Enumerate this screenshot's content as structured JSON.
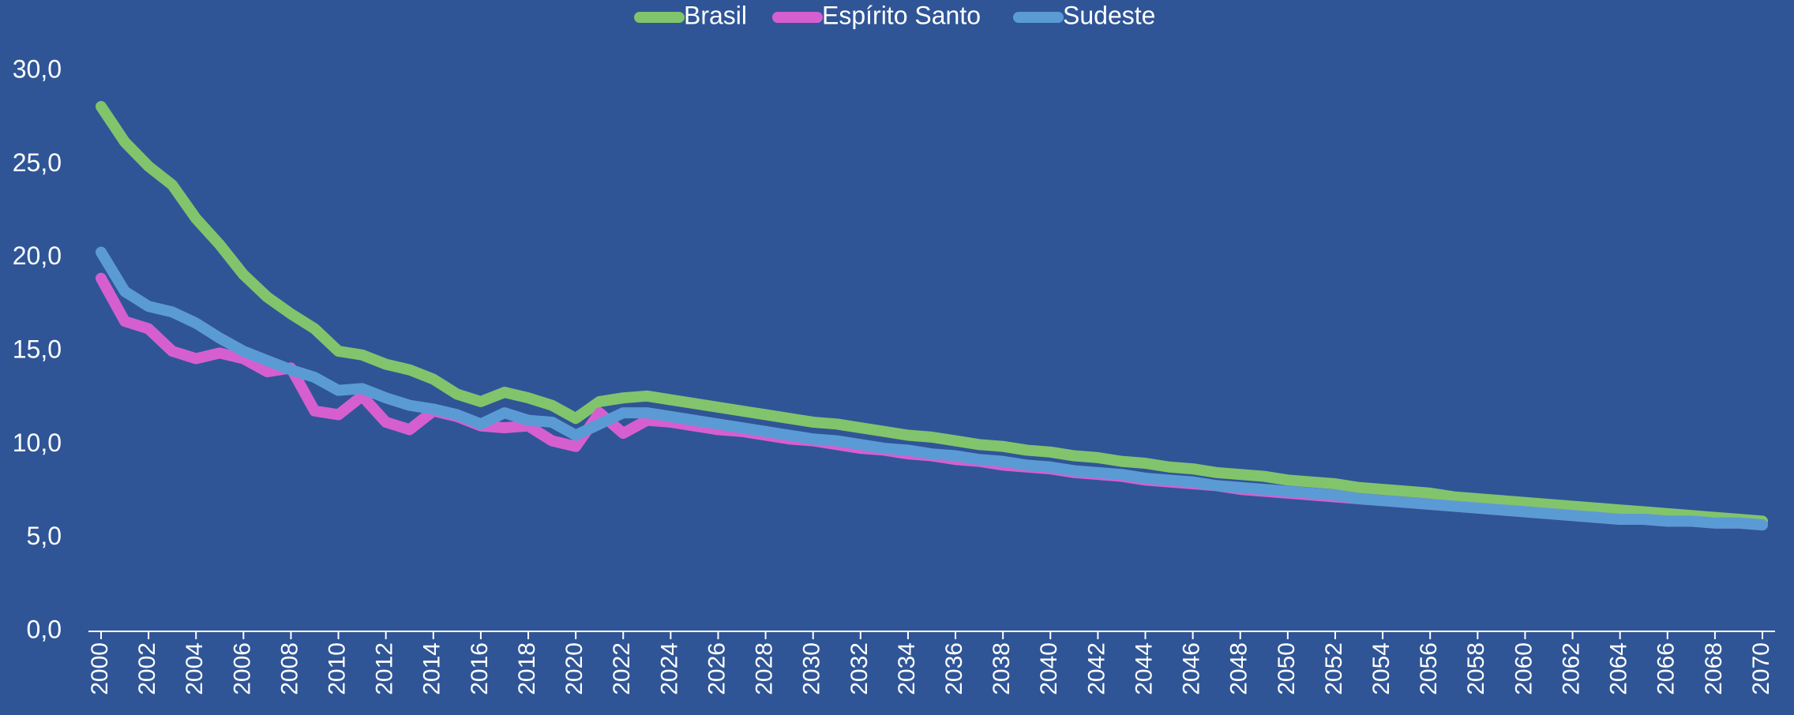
{
  "chart_data": {
    "type": "line",
    "x": [
      2000,
      2001,
      2002,
      2003,
      2004,
      2005,
      2006,
      2007,
      2008,
      2009,
      2010,
      2011,
      2012,
      2013,
      2014,
      2015,
      2016,
      2017,
      2018,
      2019,
      2020,
      2021,
      2022,
      2023,
      2024,
      2025,
      2026,
      2027,
      2028,
      2029,
      2030,
      2031,
      2032,
      2033,
      2034,
      2035,
      2036,
      2037,
      2038,
      2039,
      2040,
      2041,
      2042,
      2043,
      2044,
      2045,
      2046,
      2047,
      2048,
      2049,
      2050,
      2051,
      2052,
      2053,
      2054,
      2055,
      2056,
      2057,
      2058,
      2059,
      2060,
      2061,
      2062,
      2063,
      2064,
      2065,
      2066,
      2067,
      2068,
      2069,
      2070
    ],
    "series": [
      {
        "name": "Brasil",
        "color": "#82c46c",
        "values": [
          28.1,
          26.2,
          24.9,
          23.9,
          22.1,
          20.7,
          19.1,
          17.9,
          17.0,
          16.2,
          15.0,
          14.8,
          14.3,
          14.0,
          13.5,
          12.7,
          12.3,
          12.8,
          12.5,
          12.1,
          11.4,
          12.3,
          12.5,
          12.6,
          12.4,
          12.2,
          12.0,
          11.8,
          11.6,
          11.4,
          11.2,
          11.1,
          10.9,
          10.7,
          10.5,
          10.4,
          10.2,
          10.0,
          9.9,
          9.7,
          9.6,
          9.4,
          9.3,
          9.1,
          9.0,
          8.8,
          8.7,
          8.5,
          8.4,
          8.3,
          8.1,
          8.0,
          7.9,
          7.7,
          7.6,
          7.5,
          7.4,
          7.2,
          7.1,
          7.0,
          6.9,
          6.8,
          6.7,
          6.6,
          6.5,
          6.4,
          6.3,
          6.2,
          6.1,
          6.0,
          5.9
        ]
      },
      {
        "name": "Espírito Santo",
        "color": "#d65fd0",
        "values": [
          18.9,
          16.6,
          16.2,
          15.0,
          14.6,
          14.9,
          14.6,
          13.9,
          14.1,
          11.8,
          11.6,
          12.6,
          11.2,
          10.8,
          11.8,
          11.5,
          11.0,
          10.9,
          11.0,
          10.2,
          9.9,
          11.7,
          10.6,
          11.3,
          11.2,
          11.0,
          10.8,
          10.7,
          10.5,
          10.3,
          10.2,
          10.0,
          9.8,
          9.7,
          9.5,
          9.4,
          9.2,
          9.1,
          8.9,
          8.8,
          8.7,
          8.5,
          8.4,
          8.3,
          8.1,
          8.0,
          7.9,
          7.8,
          7.6,
          7.5,
          7.4,
          7.3,
          7.2,
          7.1,
          7.0,
          6.9,
          6.8,
          6.7,
          6.6,
          6.5,
          6.4,
          6.3,
          6.2,
          6.1,
          6.0,
          6.0,
          5.9,
          5.9,
          5.8,
          5.8,
          5.7
        ]
      },
      {
        "name": "Sudeste",
        "color": "#5b9bd5",
        "values": [
          20.3,
          18.2,
          17.4,
          17.1,
          16.5,
          15.7,
          15.0,
          14.5,
          14.0,
          13.6,
          12.9,
          13.0,
          12.5,
          12.1,
          11.9,
          11.6,
          11.1,
          11.7,
          11.3,
          11.2,
          10.5,
          11.1,
          11.7,
          11.7,
          11.5,
          11.3,
          11.1,
          10.9,
          10.7,
          10.5,
          10.3,
          10.2,
          10.0,
          9.8,
          9.7,
          9.5,
          9.4,
          9.2,
          9.1,
          8.9,
          8.8,
          8.6,
          8.5,
          8.4,
          8.2,
          8.1,
          8.0,
          7.8,
          7.7,
          7.6,
          7.5,
          7.4,
          7.3,
          7.1,
          7.0,
          6.9,
          6.8,
          6.7,
          6.6,
          6.5,
          6.4,
          6.3,
          6.2,
          6.1,
          6.0,
          6.0,
          5.9,
          5.9,
          5.8,
          5.8,
          5.7
        ]
      }
    ],
    "xlim": [
      2000,
      2070
    ],
    "xticks": [
      2000,
      2002,
      2004,
      2006,
      2008,
      2010,
      2012,
      2014,
      2016,
      2018,
      2020,
      2022,
      2024,
      2026,
      2028,
      2030,
      2032,
      2034,
      2036,
      2038,
      2040,
      2042,
      2044,
      2046,
      2048,
      2050,
      2052,
      2054,
      2056,
      2058,
      2060,
      2062,
      2064,
      2066,
      2068,
      2070
    ],
    "ylim": [
      0,
      30
    ],
    "yticks": [
      {
        "value": 0,
        "label": "0,0"
      },
      {
        "value": 5,
        "label": "5,0"
      },
      {
        "value": 10,
        "label": "10,0"
      },
      {
        "value": 15,
        "label": "15,0"
      },
      {
        "value": 20,
        "label": "20,0"
      },
      {
        "value": 25,
        "label": "25,0"
      },
      {
        "value": 30,
        "label": "30,0"
      }
    ],
    "legend": "top"
  }
}
